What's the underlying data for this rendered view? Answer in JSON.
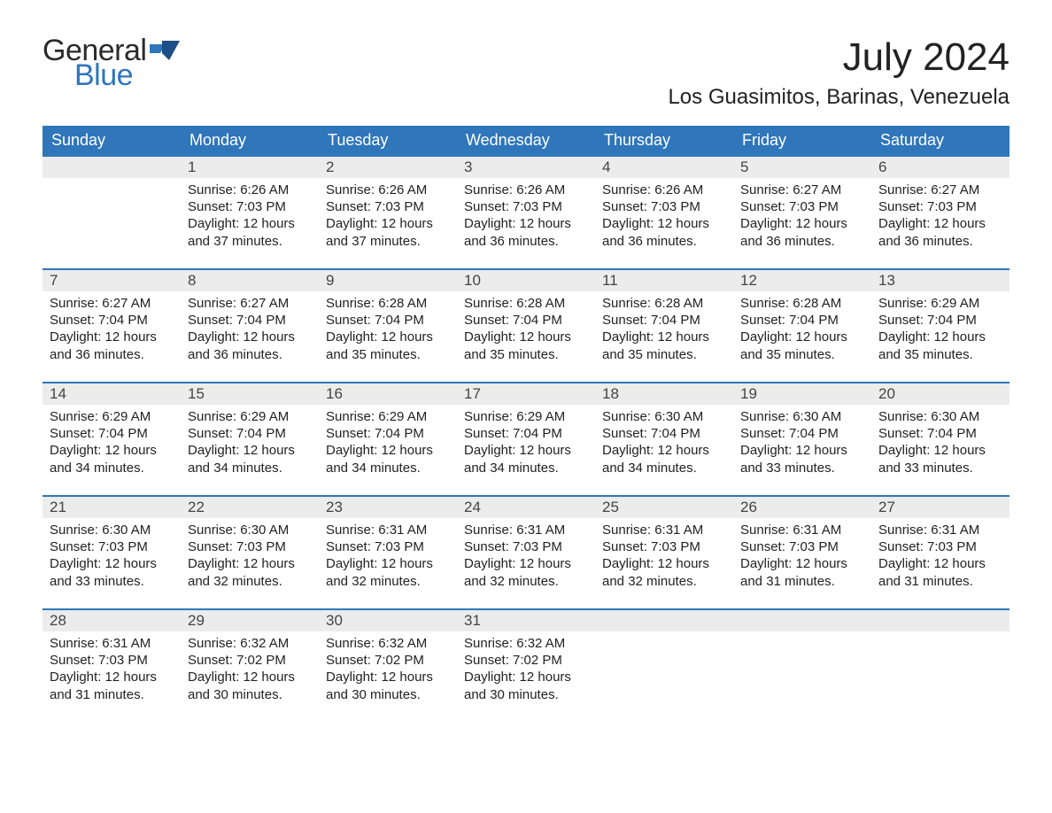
{
  "logo": {
    "word1": "General",
    "word2": "Blue",
    "text_color": "#2a2a2a",
    "accent_color": "#2f76bb"
  },
  "title": "July 2024",
  "location": "Los Guasimitos, Barinas, Venezuela",
  "colors": {
    "header_bg": "#2f76bb",
    "header_text": "#ffffff",
    "daynum_bg": "#ececec",
    "row_border": "#2f76bb",
    "body_text": "#222222",
    "page_bg": "#ffffff"
  },
  "fonts": {
    "title_size_pt": 33,
    "location_size_pt": 18,
    "weekday_size_pt": 14,
    "daynum_size_pt": 13,
    "body_size_pt": 11
  },
  "weekdays": [
    "Sunday",
    "Monday",
    "Tuesday",
    "Wednesday",
    "Thursday",
    "Friday",
    "Saturday"
  ],
  "leading_blanks": 1,
  "days": [
    {
      "n": 1,
      "sunrise": "6:26 AM",
      "sunset": "7:03 PM",
      "daylight": "12 hours and 37 minutes."
    },
    {
      "n": 2,
      "sunrise": "6:26 AM",
      "sunset": "7:03 PM",
      "daylight": "12 hours and 37 minutes."
    },
    {
      "n": 3,
      "sunrise": "6:26 AM",
      "sunset": "7:03 PM",
      "daylight": "12 hours and 36 minutes."
    },
    {
      "n": 4,
      "sunrise": "6:26 AM",
      "sunset": "7:03 PM",
      "daylight": "12 hours and 36 minutes."
    },
    {
      "n": 5,
      "sunrise": "6:27 AM",
      "sunset": "7:03 PM",
      "daylight": "12 hours and 36 minutes."
    },
    {
      "n": 6,
      "sunrise": "6:27 AM",
      "sunset": "7:03 PM",
      "daylight": "12 hours and 36 minutes."
    },
    {
      "n": 7,
      "sunrise": "6:27 AM",
      "sunset": "7:04 PM",
      "daylight": "12 hours and 36 minutes."
    },
    {
      "n": 8,
      "sunrise": "6:27 AM",
      "sunset": "7:04 PM",
      "daylight": "12 hours and 36 minutes."
    },
    {
      "n": 9,
      "sunrise": "6:28 AM",
      "sunset": "7:04 PM",
      "daylight": "12 hours and 35 minutes."
    },
    {
      "n": 10,
      "sunrise": "6:28 AM",
      "sunset": "7:04 PM",
      "daylight": "12 hours and 35 minutes."
    },
    {
      "n": 11,
      "sunrise": "6:28 AM",
      "sunset": "7:04 PM",
      "daylight": "12 hours and 35 minutes."
    },
    {
      "n": 12,
      "sunrise": "6:28 AM",
      "sunset": "7:04 PM",
      "daylight": "12 hours and 35 minutes."
    },
    {
      "n": 13,
      "sunrise": "6:29 AM",
      "sunset": "7:04 PM",
      "daylight": "12 hours and 35 minutes."
    },
    {
      "n": 14,
      "sunrise": "6:29 AM",
      "sunset": "7:04 PM",
      "daylight": "12 hours and 34 minutes."
    },
    {
      "n": 15,
      "sunrise": "6:29 AM",
      "sunset": "7:04 PM",
      "daylight": "12 hours and 34 minutes."
    },
    {
      "n": 16,
      "sunrise": "6:29 AM",
      "sunset": "7:04 PM",
      "daylight": "12 hours and 34 minutes."
    },
    {
      "n": 17,
      "sunrise": "6:29 AM",
      "sunset": "7:04 PM",
      "daylight": "12 hours and 34 minutes."
    },
    {
      "n": 18,
      "sunrise": "6:30 AM",
      "sunset": "7:04 PM",
      "daylight": "12 hours and 34 minutes."
    },
    {
      "n": 19,
      "sunrise": "6:30 AM",
      "sunset": "7:04 PM",
      "daylight": "12 hours and 33 minutes."
    },
    {
      "n": 20,
      "sunrise": "6:30 AM",
      "sunset": "7:04 PM",
      "daylight": "12 hours and 33 minutes."
    },
    {
      "n": 21,
      "sunrise": "6:30 AM",
      "sunset": "7:03 PM",
      "daylight": "12 hours and 33 minutes."
    },
    {
      "n": 22,
      "sunrise": "6:30 AM",
      "sunset": "7:03 PM",
      "daylight": "12 hours and 32 minutes."
    },
    {
      "n": 23,
      "sunrise": "6:31 AM",
      "sunset": "7:03 PM",
      "daylight": "12 hours and 32 minutes."
    },
    {
      "n": 24,
      "sunrise": "6:31 AM",
      "sunset": "7:03 PM",
      "daylight": "12 hours and 32 minutes."
    },
    {
      "n": 25,
      "sunrise": "6:31 AM",
      "sunset": "7:03 PM",
      "daylight": "12 hours and 32 minutes."
    },
    {
      "n": 26,
      "sunrise": "6:31 AM",
      "sunset": "7:03 PM",
      "daylight": "12 hours and 31 minutes."
    },
    {
      "n": 27,
      "sunrise": "6:31 AM",
      "sunset": "7:03 PM",
      "daylight": "12 hours and 31 minutes."
    },
    {
      "n": 28,
      "sunrise": "6:31 AM",
      "sunset": "7:03 PM",
      "daylight": "12 hours and 31 minutes."
    },
    {
      "n": 29,
      "sunrise": "6:32 AM",
      "sunset": "7:02 PM",
      "daylight": "12 hours and 30 minutes."
    },
    {
      "n": 30,
      "sunrise": "6:32 AM",
      "sunset": "7:02 PM",
      "daylight": "12 hours and 30 minutes."
    },
    {
      "n": 31,
      "sunrise": "6:32 AM",
      "sunset": "7:02 PM",
      "daylight": "12 hours and 30 minutes."
    }
  ],
  "labels": {
    "sunrise": "Sunrise:",
    "sunset": "Sunset:",
    "daylight": "Daylight:"
  }
}
